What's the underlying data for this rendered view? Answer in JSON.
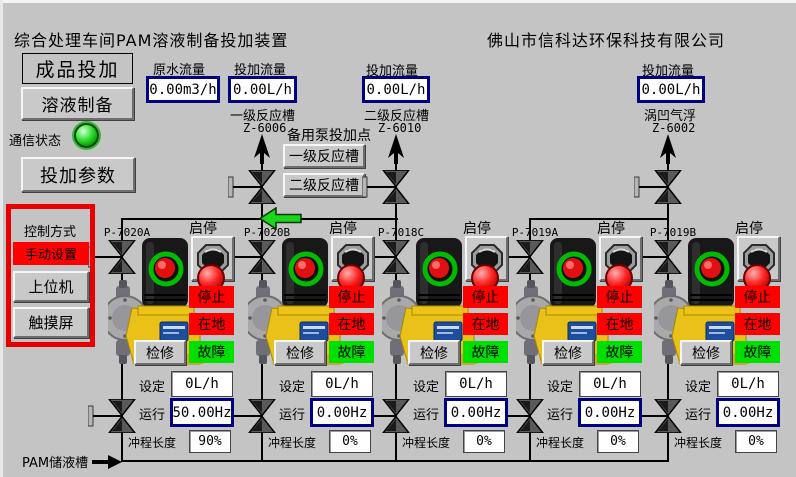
{
  "window": {
    "title": "综合处理车间PAM溶液制备投加装置",
    "company": "佛山市信科达环保科技有限公司"
  },
  "nav": {
    "finished_dosing": "成品投加",
    "solution_prep": "溶液制备",
    "comm_status": "通信状态",
    "dosing_params": "投加参数"
  },
  "control_mode": {
    "title": "控制方式",
    "manual": "手动设置",
    "host": "上位机",
    "touch": "触摸屏"
  },
  "flows": [
    {
      "label": "原水流量",
      "value": "0.00m3/h",
      "dest": "",
      "tag": ""
    },
    {
      "label": "投加流量",
      "value": "0.00L/h",
      "dest": "一级反应槽",
      "tag": "Z-6006"
    },
    {
      "label": "投加流量",
      "value": "0.00L/h",
      "dest": "二级反应槽",
      "tag": "Z-6010"
    },
    {
      "label": "投加流量",
      "value": "0.00L/h",
      "dest": "涡凹气浮",
      "tag": "Z-6002"
    }
  ],
  "backup": {
    "label": "备用泵投加点",
    "btn_tank1": "一级反应槽",
    "btn_tank2": "二级反应槽"
  },
  "pump_common": {
    "startstop": "启停",
    "stop": "停止",
    "local": "在地",
    "fault": "故障",
    "maint": "检修",
    "set_label": "设定",
    "run_label": "运行",
    "stroke_label": "冲程长度"
  },
  "pumps": [
    {
      "id": "P-7020A",
      "set": "0L/h",
      "run": "50.00Hz",
      "stroke": "90%"
    },
    {
      "id": "P-7020B",
      "set": "0L/h",
      "run": "0.00Hz",
      "stroke": "0%"
    },
    {
      "id": "P-7018C",
      "set": "0L/h",
      "run": "0.00Hz",
      "stroke": "0%"
    },
    {
      "id": "P-7019A",
      "set": "0L/h",
      "run": "0.00Hz",
      "stroke": "0%"
    },
    {
      "id": "P-7019B",
      "set": "0L/h",
      "run": "0.00Hz",
      "stroke": "0%"
    }
  ],
  "tank": {
    "label": "PAM储液槽"
  },
  "colors": {
    "status_red": "#ff0000",
    "status_green": "#00e000",
    "value_border_navy": "#000080",
    "led_green": "#2ee02e",
    "flow_arrow_green": "#1ad51a",
    "control_frame_red": "#e60000"
  }
}
